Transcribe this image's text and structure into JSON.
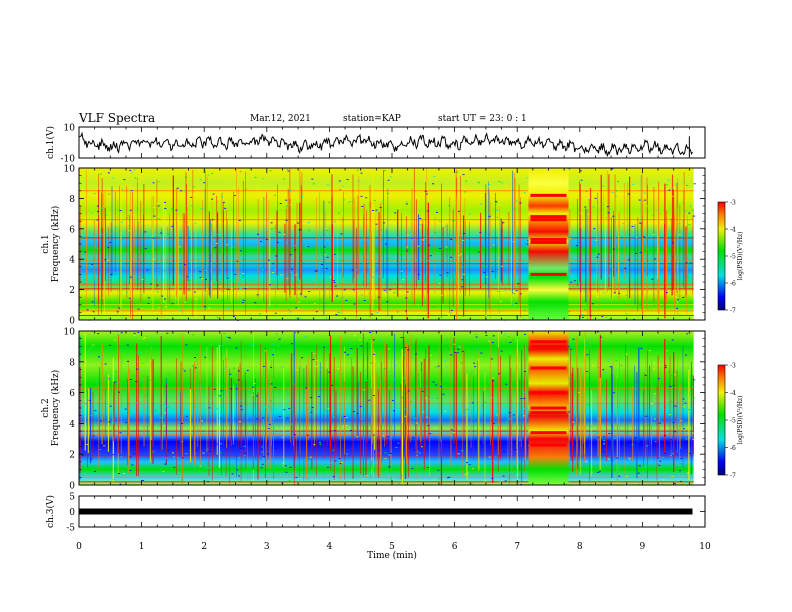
{
  "header": {
    "title": "VLF Spectra",
    "date": "Mar.12, 2021",
    "station": "station=KAP",
    "start_ut": "start UT =  23: 0  : 1"
  },
  "chart_data": [
    {
      "type": "line",
      "panel": "ch1-waveform",
      "ylabel": "ch.1(V)",
      "ylim": [
        -10,
        10
      ],
      "yticks": [
        10,
        -10
      ],
      "x": [
        0,
        0.5,
        1,
        1.5,
        2,
        2.5,
        3,
        3.5,
        4,
        4.5,
        5,
        5.5,
        6,
        6.5,
        7,
        7.5,
        8,
        8.5,
        9,
        9.5,
        9.8
      ],
      "values": [
        2,
        -3,
        1,
        -2,
        0,
        -1,
        2,
        -3,
        0,
        2,
        -2,
        1,
        -1,
        2,
        0,
        -1,
        -3,
        -5,
        -2,
        -4,
        -6
      ],
      "color": "#000000"
    },
    {
      "type": "heatmap",
      "panel": "ch1-spectrogram",
      "ylabel": "ch.1\nFrequency (kHz)",
      "ylim": [
        0,
        10
      ],
      "yticks": [
        0,
        2,
        4,
        6,
        8,
        10
      ],
      "xlim": [
        0,
        10
      ],
      "colorbar": {
        "label": "log(PSD)(V²/Hz)",
        "range": [
          -7,
          -3
        ],
        "ticks": [
          -3,
          -4,
          -5,
          -6,
          -7
        ]
      }
    },
    {
      "type": "heatmap",
      "panel": "ch2-spectrogram",
      "ylabel": "ch.2\nFrequency (kHz)",
      "ylim": [
        0,
        10
      ],
      "yticks": [
        0,
        2,
        4,
        6,
        8,
        10
      ],
      "xlim": [
        0,
        10
      ],
      "colorbar": {
        "label": "log(PSD)(V²/Hz)",
        "range": [
          -7,
          -3
        ],
        "ticks": [
          -3,
          -4,
          -5,
          -6,
          -7
        ]
      }
    },
    {
      "type": "line",
      "panel": "ch3-waveform",
      "ylabel": "ch.3(V)",
      "ylim": [
        -5,
        5
      ],
      "yticks": [
        5,
        0,
        -5
      ],
      "x": [
        0,
        9.8
      ],
      "values": [
        0,
        0
      ],
      "color": "#000000"
    }
  ],
  "x_axis": {
    "label": "Time (min)",
    "range": [
      0,
      10
    ],
    "ticks": [
      0,
      1,
      2,
      3,
      4,
      5,
      6,
      7,
      8,
      9,
      10
    ]
  },
  "colors": {
    "blue": "#0000ff",
    "cyan": "#00e0e0",
    "green": "#00e000",
    "yellow": "#f0f000",
    "red": "#ff0000"
  }
}
